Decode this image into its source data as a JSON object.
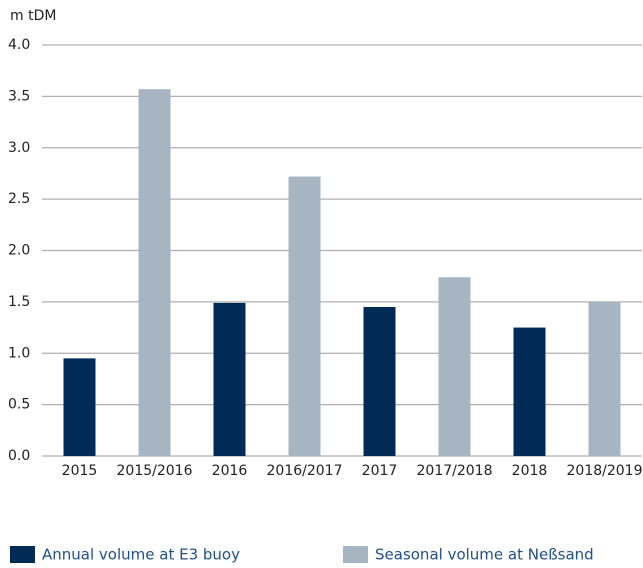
{
  "chart_data": {
    "type": "bar",
    "y_label": "m tDM",
    "categories": [
      "2015",
      "2015/2016",
      "2016",
      "2016/2017",
      "2017",
      "2017/2018",
      "2018",
      "2018/2019"
    ],
    "series": [
      {
        "name": "Annual volume at E3 buoy",
        "color": "#002b57",
        "values": [
          0.95,
          null,
          1.49,
          null,
          1.45,
          null,
          1.25,
          null
        ]
      },
      {
        "name": "Seasonal volume at Neßsand",
        "color": "#a7b5c3",
        "values": [
          null,
          3.57,
          null,
          2.72,
          null,
          1.74,
          null,
          1.5
        ]
      }
    ],
    "ylim": [
      0,
      4
    ],
    "yticks": [
      {
        "value": 0,
        "label": "0.0"
      },
      {
        "value": 0.5,
        "label": "0.5"
      },
      {
        "value": 1,
        "label": "1.0"
      },
      {
        "value": 1.5,
        "label": "1.5"
      },
      {
        "value": 2,
        "label": "2.0"
      },
      {
        "value": 2.5,
        "label": "2.5"
      },
      {
        "value": 3,
        "label": "3.0"
      },
      {
        "value": 3.5,
        "label": "3.5"
      },
      {
        "value": 4,
        "label": "4.0"
      }
    ],
    "grid": true,
    "legend": "bottom"
  }
}
